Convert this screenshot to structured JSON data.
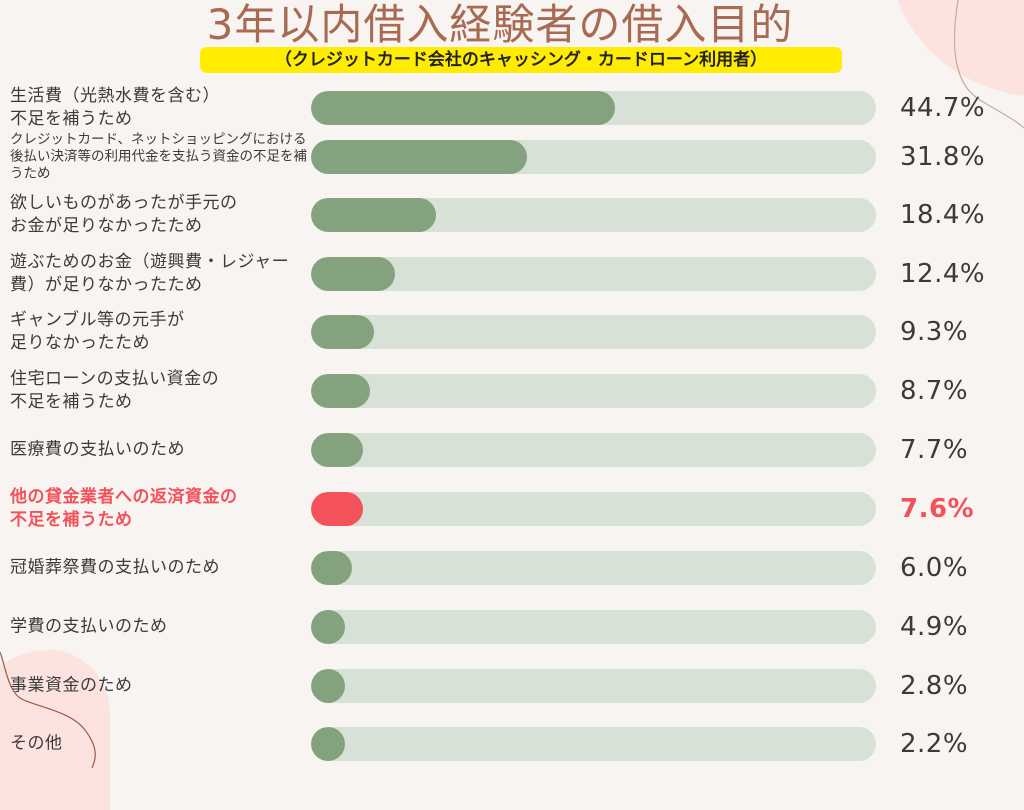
{
  "header": {
    "title": "3年以内借入経験者の借入目的",
    "subtitle": "（クレジットカード会社のキャッシング・カードローン利用者）"
  },
  "colors": {
    "background": "#f8f4f1",
    "title": "#a86a52",
    "subtitle_bg": "#ffec00",
    "bar_fill": "#84a27e",
    "bar_track": "#d7e1d6",
    "highlight": "#f4525a"
  },
  "rows": [
    {
      "label": "生活費（光熱水費を含む）\n不足を補うため",
      "value": 44.7,
      "value_label": "44.7%"
    },
    {
      "label": "クレジットカード、ネットショッピングにおける後払い決済等の利用代金を支払う資金の不足を補うため",
      "value": 31.8,
      "value_label": "31.8%"
    },
    {
      "label": "欲しいものがあったが手元の\nお金が足りなかったため",
      "value": 18.4,
      "value_label": "18.4%"
    },
    {
      "label": "遊ぶためのお金（遊興費・レジャー費）が足りなかったため",
      "value": 12.4,
      "value_label": "12.4%"
    },
    {
      "label": "ギャンブル等の元手が\n足りなかったため",
      "value": 9.3,
      "value_label": "9.3%"
    },
    {
      "label": "住宅ローンの支払い資金の\n不足を補うため",
      "value": 8.7,
      "value_label": "8.7%"
    },
    {
      "label": "医療費の支払いのため",
      "value": 7.7,
      "value_label": "7.7%"
    },
    {
      "label": "他の貸金業者への返済資金の\n不足を補うため",
      "value": 7.6,
      "value_label": "7.6%",
      "highlight": true
    },
    {
      "label": "冠婚葬祭費の支払いのため",
      "value": 6.0,
      "value_label": "6.0%"
    },
    {
      "label": "学費の支払いのため",
      "value": 4.9,
      "value_label": "4.9%"
    },
    {
      "label": "事業資金のため",
      "value": 2.8,
      "value_label": "2.8%"
    },
    {
      "label": "その他",
      "value": 2.2,
      "value_label": "2.2%"
    }
  ],
  "chart_data": {
    "type": "bar",
    "orientation": "horizontal",
    "title": "3年以内借入経験者の借入目的",
    "subtitle": "（クレジットカード会社のキャッシング・カードローン利用者）",
    "xlabel": "",
    "ylabel": "",
    "xlim": [
      0,
      83
    ],
    "grid": false,
    "legend": null,
    "categories": [
      "生活費（光熱水費を含む）不足を補うため",
      "クレジットカード、ネットショッピングにおける後払い決済等の利用代金を支払う資金の不足を補うため",
      "欲しいものがあったが手元のお金が足りなかったため",
      "遊ぶためのお金（遊興費・レジャー費）が足りなかったため",
      "ギャンブル等の元手が足りなかったため",
      "住宅ローンの支払い資金の不足を補うため",
      "医療費の支払いのため",
      "他の貸金業者への返済資金の不足を補うため",
      "冠婚葬祭費の支払いのため",
      "学費の支払いのため",
      "事業資金のため",
      "その他"
    ],
    "values": [
      44.7,
      31.8,
      18.4,
      12.4,
      9.3,
      8.7,
      7.7,
      7.6,
      6.0,
      4.9,
      2.8,
      2.2
    ],
    "unit": "%",
    "annotations": [
      "他の貸金業者への返済資金の不足を補うため highlighted in red (7.6%)"
    ]
  }
}
